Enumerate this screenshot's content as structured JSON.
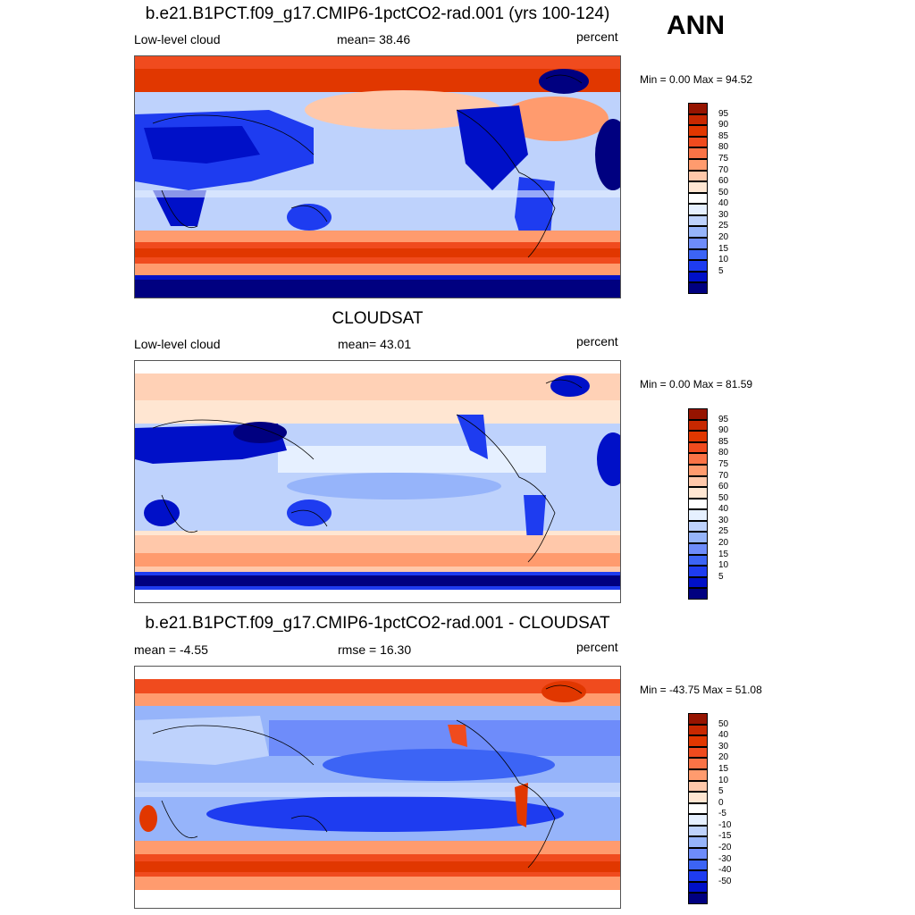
{
  "season": "ANN",
  "colors": {
    "seq": [
      "#000080",
      "#0010c8",
      "#1e3cf0",
      "#3c64f5",
      "#6e8cfa",
      "#96b4fa",
      "#bed2fc",
      "#e6f0ff",
      "#ffffff",
      "#ffe6d2",
      "#ffc8aa",
      "#ff9b6e",
      "#fa7346",
      "#f04b1e",
      "#e13700",
      "#c82800",
      "#961400"
    ],
    "diff": [
      "#000080",
      "#0010c8",
      "#1e3cf0",
      "#3c64f5",
      "#6e8cfa",
      "#96b4fa",
      "#bed2fc",
      "#e6f0ff",
      "#ffffff",
      "#ffe6d2",
      "#ffc8aa",
      "#ff9b6e",
      "#fa7346",
      "#f04b1e",
      "#e13700",
      "#c82800",
      "#961400"
    ]
  },
  "panels": [
    {
      "title": "b.e21.B1PCT.f09_g17.CMIP6-1pctCO2-rad.001 (yrs 100-124)",
      "left_label": "Low-level cloud",
      "stat_label": "mean=  38.46",
      "units": "percent",
      "minmax": "Min =   0.00 Max =  94.52",
      "levels": [
        "95",
        "90",
        "85",
        "80",
        "75",
        "70",
        "60",
        "50",
        "40",
        "30",
        "25",
        "20",
        "15",
        "10",
        "5"
      ],
      "variant": "model"
    },
    {
      "title": "CLOUDSAT",
      "left_label": "Low-level cloud",
      "stat_label": "mean=  43.01",
      "units": "percent",
      "minmax": "Min =   0.00 Max =  81.59",
      "levels": [
        "95",
        "90",
        "85",
        "80",
        "75",
        "70",
        "60",
        "50",
        "40",
        "30",
        "25",
        "20",
        "15",
        "10",
        "5"
      ],
      "variant": "obs"
    },
    {
      "title": "b.e21.B1PCT.f09_g17.CMIP6-1pctCO2-rad.001 - CLOUDSAT",
      "left_label": "mean =  -4.55",
      "stat_label": "rmse =  16.30",
      "units": "percent",
      "minmax": "Min = -43.75 Max =  51.08",
      "levels": [
        "50",
        "40",
        "30",
        "20",
        "15",
        "10",
        "5",
        "0",
        "-5",
        "-10",
        "-15",
        "-20",
        "-30",
        "-40",
        "-50"
      ],
      "variant": "diff"
    }
  ]
}
